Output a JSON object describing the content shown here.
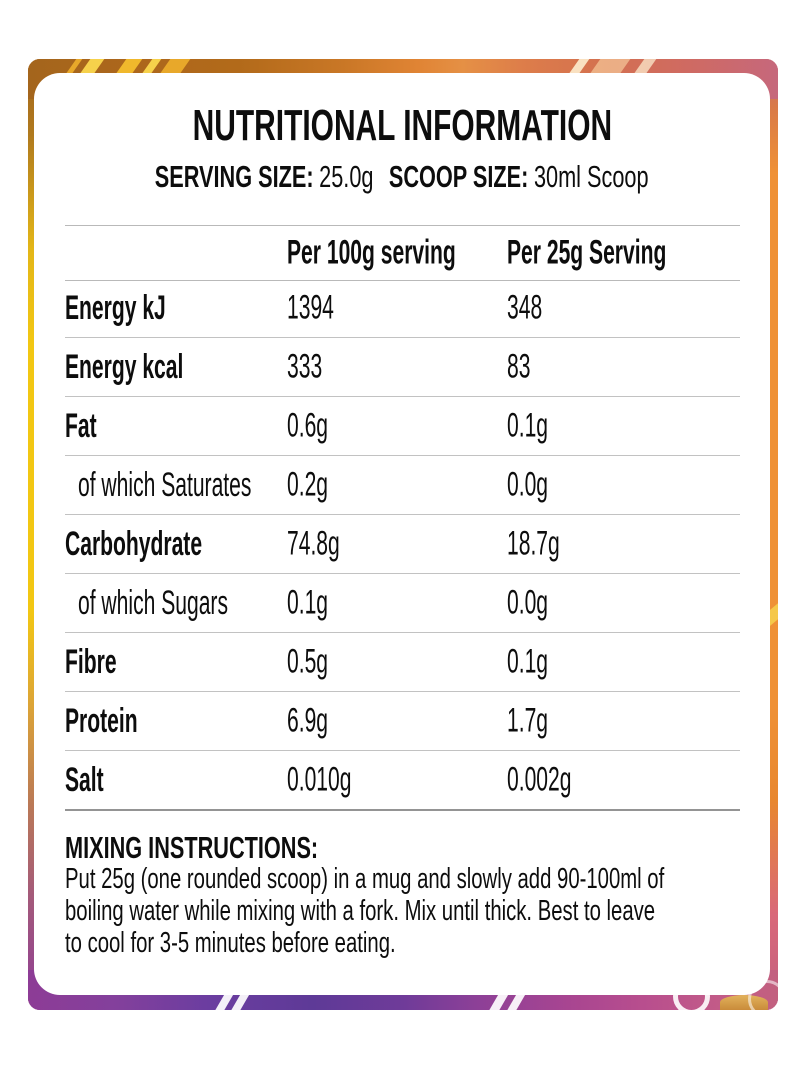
{
  "label": {
    "title": "NUTRITIONAL INFORMATION",
    "serving": {
      "serving_size_label": "SERVING SIZE:",
      "serving_size_value": "25.0g",
      "scoop_size_label": "SCOOP SIZE:",
      "scoop_size_value": "30ml Scoop"
    },
    "table": {
      "columns": [
        "Per 100g serving",
        "Per 25g Serving"
      ],
      "rows": [
        {
          "label": "Energy kJ",
          "per100": "1394",
          "per25": "348"
        },
        {
          "label": "Energy kcal",
          "per100": "333",
          "per25": "83"
        },
        {
          "label": "Fat",
          "per100": "0.6g",
          "per25": "0.1g"
        },
        {
          "label": "of which Saturates",
          "per100": "0.2g",
          "per25": "0.0g"
        },
        {
          "label": "Carbohydrate",
          "per100": "74.8g",
          "per25": "18.7g"
        },
        {
          "label": "of which Sugars",
          "per100": "0.1g",
          "per25": "0.0g"
        },
        {
          "label": "Fibre",
          "per100": "0.5g",
          "per25": "0.1g"
        },
        {
          "label": "Protein",
          "per100": "6.9g",
          "per25": "1.7g"
        },
        {
          "label": "Salt",
          "per100": "0.010g",
          "per25": "0.002g"
        }
      ]
    },
    "mixing": {
      "heading": "MIXING INSTRUCTIONS:",
      "line1": "Put 25g (one rounded scoop) in a mug and slowly add 90-100ml of",
      "line2": "boiling water while mixing with a fork. Mix until thick. Best to leave",
      "line3": "to cool for 3-5 minutes before eating."
    },
    "colors": {
      "frame_orange": "#e08434",
      "frame_gold": "#f2c713",
      "frame_purple": "#8d3c96",
      "frame_magenta": "#b84e8e",
      "frame_pink": "#c2607f",
      "card_background": "#ffffff",
      "text": "#0d0d0d",
      "divider": "#c2c2c2"
    }
  }
}
